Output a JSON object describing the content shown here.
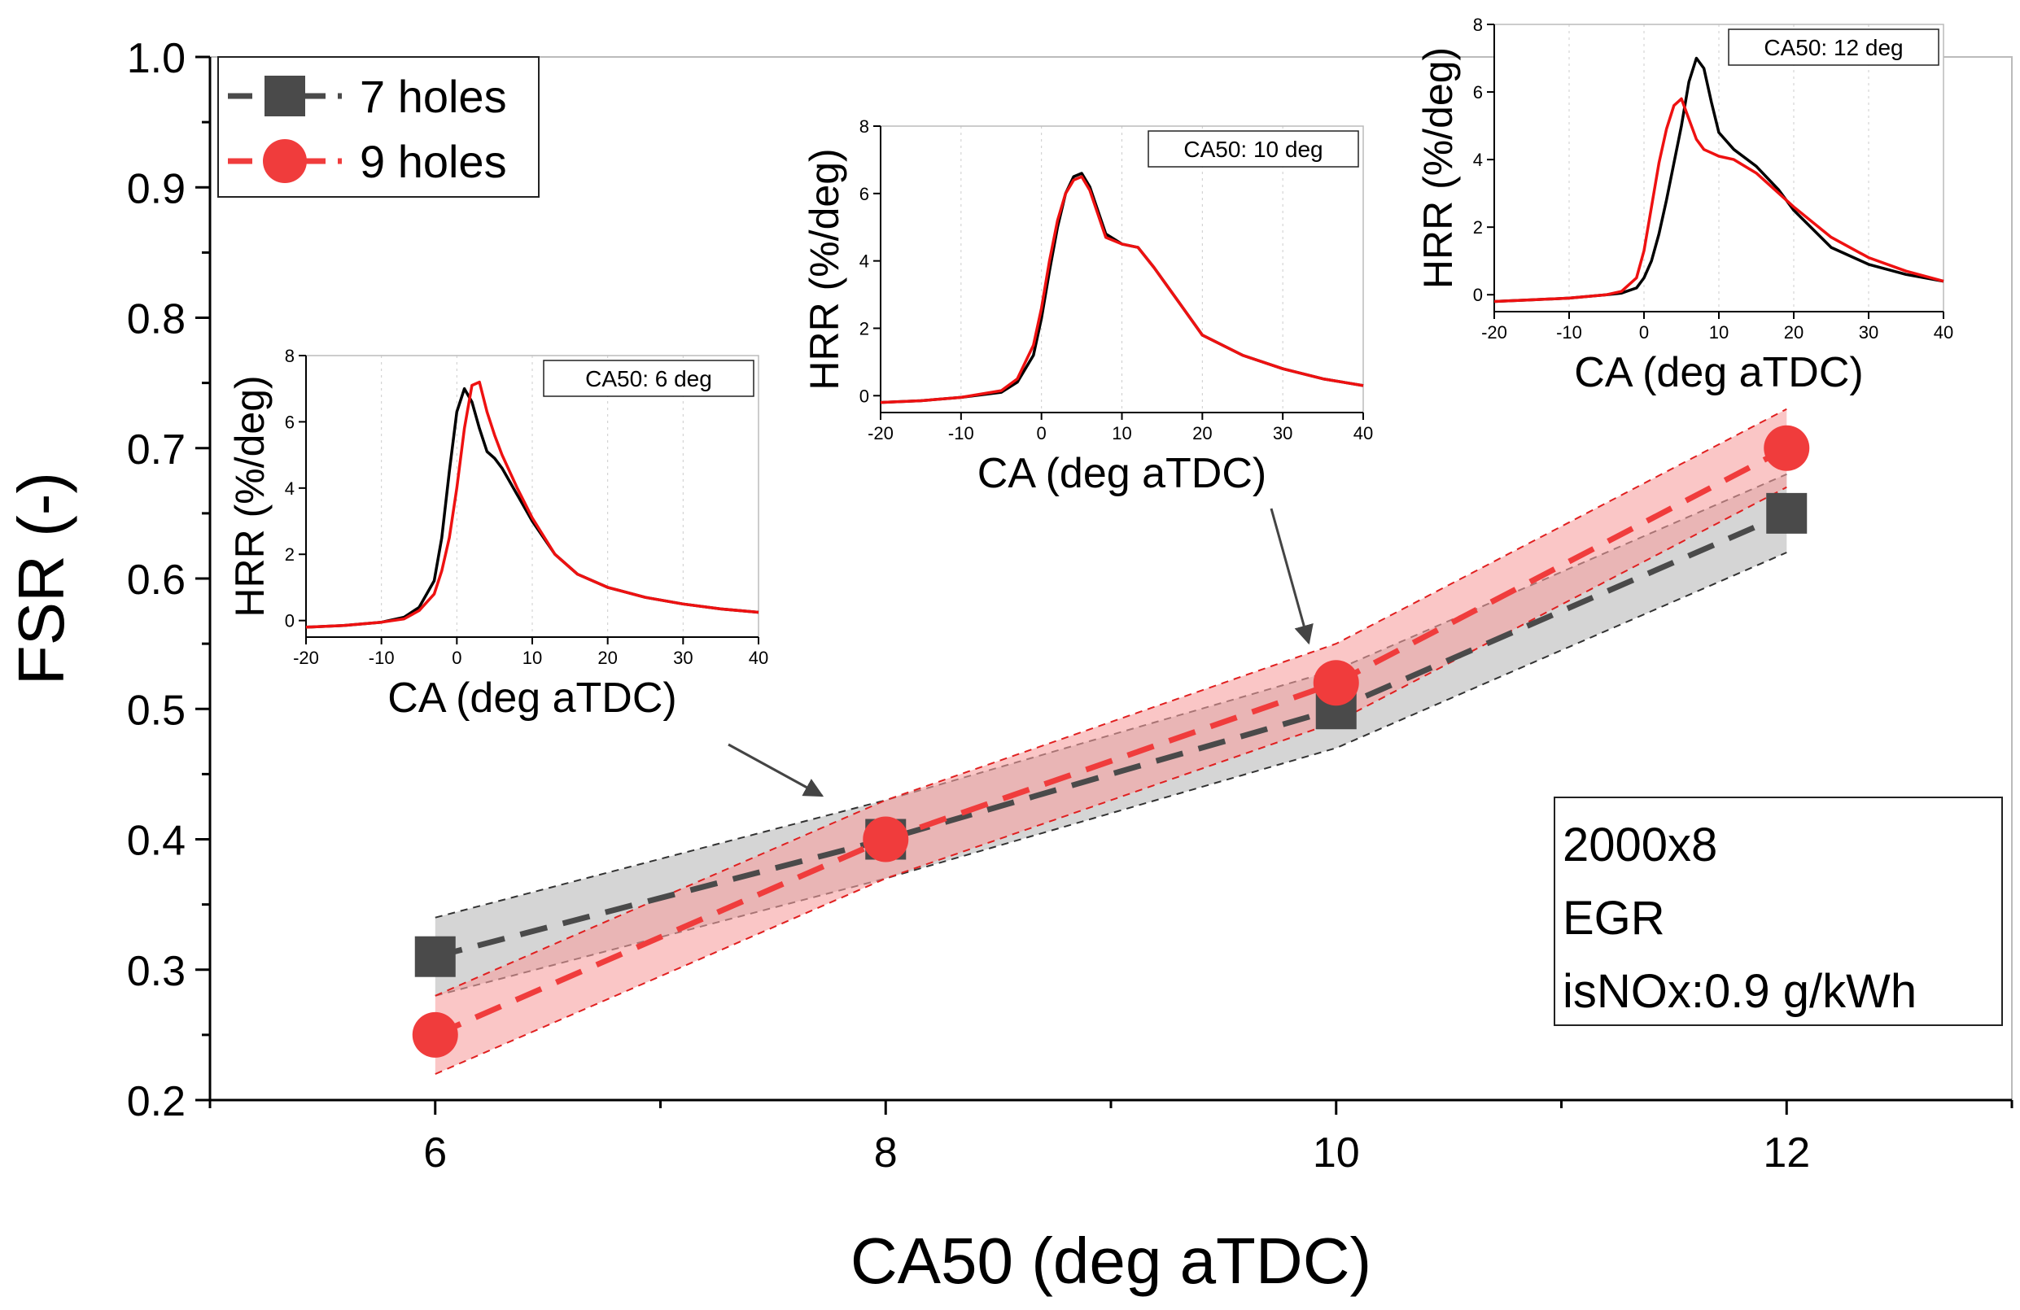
{
  "colors": {
    "series7": "#4a4a4a",
    "series9": "#f03c3c",
    "inner7": "#000000",
    "inner9": "#ee1111",
    "band7": "#b9b9b9",
    "band9": "#f7a0a0"
  },
  "chart_data": {
    "type": "line",
    "title": "",
    "xlabel": "CA50 (deg aTDC)",
    "ylabel": "FSR (-)",
    "xlim": [
      5,
      13
    ],
    "ylim": [
      0.2,
      1.0
    ],
    "xticks": [
      6,
      8,
      10,
      12
    ],
    "yticks": [
      0.2,
      0.3,
      0.4,
      0.5,
      0.6,
      0.7,
      0.8,
      0.9,
      1.0
    ],
    "series": [
      {
        "name": "7 holes",
        "marker": "square",
        "x": [
          6,
          8,
          10,
          12
        ],
        "values": [
          0.31,
          0.4,
          0.5,
          0.65
        ],
        "band_upper": [
          0.34,
          0.43,
          0.53,
          0.68
        ],
        "band_lower": [
          0.28,
          0.37,
          0.47,
          0.62
        ]
      },
      {
        "name": "9 holes",
        "marker": "circle",
        "x": [
          6,
          8,
          10,
          12
        ],
        "values": [
          0.25,
          0.4,
          0.52,
          0.7
        ],
        "band_upper": [
          0.28,
          0.43,
          0.55,
          0.73
        ],
        "band_lower": [
          0.22,
          0.37,
          0.49,
          0.67
        ]
      }
    ],
    "legend": {
      "position": "top-left",
      "entries": [
        "7 holes",
        "9 holes"
      ]
    },
    "annotation": {
      "lines": [
        "2000x8",
        "EGR",
        "isNOx:0.9 g/kWh"
      ],
      "position": "bottom-right"
    },
    "insets": [
      {
        "label": "CA50: 6 deg",
        "xlabel": "CA (deg aTDC)",
        "ylabel": "HRR (%/deg)",
        "xlim": [
          -20,
          40
        ],
        "ylim": [
          -0.5,
          8
        ],
        "xticks": [
          -20,
          -10,
          0,
          10,
          20,
          30,
          40
        ],
        "yticks": [
          0,
          2,
          4,
          6,
          8
        ],
        "series": [
          {
            "name": "7 holes",
            "x": [
              -20,
              -15,
              -10,
              -7,
              -5,
              -3,
              -2,
              -1,
              0,
              1,
              2,
              3,
              4,
              5,
              6,
              8,
              10,
              13,
              16,
              20,
              25,
              30,
              35,
              40
            ],
            "y": [
              -0.2,
              -0.15,
              -0.05,
              0.1,
              0.4,
              1.2,
              2.5,
              4.5,
              6.3,
              7.0,
              6.6,
              5.8,
              5.1,
              4.9,
              4.6,
              3.8,
              3.0,
              2.0,
              1.4,
              1.0,
              0.7,
              0.5,
              0.35,
              0.25
            ]
          },
          {
            "name": "9 holes",
            "x": [
              -20,
              -15,
              -10,
              -7,
              -5,
              -3,
              -2,
              -1,
              0,
              1,
              2,
              3,
              4,
              5,
              6,
              8,
              10,
              13,
              16,
              20,
              25,
              30,
              35,
              40
            ],
            "y": [
              -0.2,
              -0.15,
              -0.05,
              0.05,
              0.3,
              0.8,
              1.5,
              2.5,
              4.0,
              5.8,
              7.1,
              7.2,
              6.3,
              5.6,
              5.0,
              4.0,
              3.1,
              2.0,
              1.4,
              1.0,
              0.7,
              0.5,
              0.35,
              0.25
            ]
          }
        ]
      },
      {
        "label": "CA50: 10 deg",
        "xlabel": "CA (deg aTDC)",
        "ylabel": "HRR (%/deg)",
        "xlim": [
          -20,
          40
        ],
        "ylim": [
          -0.5,
          8
        ],
        "xticks": [
          -20,
          -10,
          0,
          10,
          20,
          30,
          40
        ],
        "yticks": [
          0,
          2,
          4,
          6,
          8
        ],
        "series": [
          {
            "name": "7 holes",
            "x": [
              -20,
              -15,
              -10,
              -5,
              -3,
              -1,
              0,
              1,
              2,
              3,
              4,
              5,
              6,
              8,
              10,
              12,
              14,
              17,
              20,
              25,
              30,
              35,
              40
            ],
            "y": [
              -0.2,
              -0.15,
              -0.05,
              0.1,
              0.4,
              1.2,
              2.3,
              3.7,
              5.0,
              6.0,
              6.5,
              6.6,
              6.2,
              4.8,
              4.5,
              4.4,
              3.8,
              2.8,
              1.8,
              1.2,
              0.8,
              0.5,
              0.3
            ]
          },
          {
            "name": "9 holes",
            "x": [
              -20,
              -15,
              -10,
              -5,
              -3,
              -1,
              0,
              1,
              2,
              3,
              4,
              5,
              6,
              8,
              10,
              12,
              14,
              17,
              20,
              25,
              30,
              35,
              40
            ],
            "y": [
              -0.2,
              -0.15,
              -0.05,
              0.15,
              0.5,
              1.5,
              2.6,
              4.0,
              5.2,
              6.0,
              6.4,
              6.5,
              6.1,
              4.7,
              4.5,
              4.4,
              3.8,
              2.8,
              1.8,
              1.2,
              0.8,
              0.5,
              0.3
            ]
          }
        ]
      },
      {
        "label": "CA50: 12 deg",
        "xlabel": "CA (deg aTDC)",
        "ylabel": "HRR (%/deg)",
        "xlim": [
          -20,
          40
        ],
        "ylim": [
          -0.5,
          8
        ],
        "xticks": [
          -20,
          -10,
          0,
          10,
          20,
          30,
          40
        ],
        "yticks": [
          0,
          2,
          4,
          6,
          8
        ],
        "series": [
          {
            "name": "7 holes",
            "x": [
              -20,
              -15,
              -10,
              -5,
              -3,
              -1,
              0,
              1,
              2,
              3,
              4,
              5,
              6,
              7,
              8,
              9,
              10,
              12,
              15,
              18,
              20,
              25,
              30,
              35,
              40
            ],
            "y": [
              -0.2,
              -0.15,
              -0.1,
              0.0,
              0.05,
              0.2,
              0.5,
              1.0,
              1.8,
              2.8,
              3.9,
              5.0,
              6.3,
              7.0,
              6.7,
              5.7,
              4.8,
              4.3,
              3.8,
              3.1,
              2.5,
              1.4,
              0.9,
              0.6,
              0.4
            ]
          },
          {
            "name": "9 holes",
            "x": [
              -20,
              -15,
              -10,
              -5,
              -3,
              -1,
              0,
              1,
              2,
              3,
              4,
              5,
              6,
              7,
              8,
              9,
              10,
              12,
              15,
              18,
              20,
              25,
              30,
              35,
              40
            ],
            "y": [
              -0.2,
              -0.15,
              -0.1,
              0.0,
              0.1,
              0.5,
              1.3,
              2.6,
              3.9,
              4.9,
              5.6,
              5.8,
              5.2,
              4.6,
              4.3,
              4.2,
              4.1,
              4.0,
              3.6,
              3.0,
              2.6,
              1.7,
              1.1,
              0.7,
              0.4
            ]
          }
        ]
      }
    ],
    "grid": false
  }
}
